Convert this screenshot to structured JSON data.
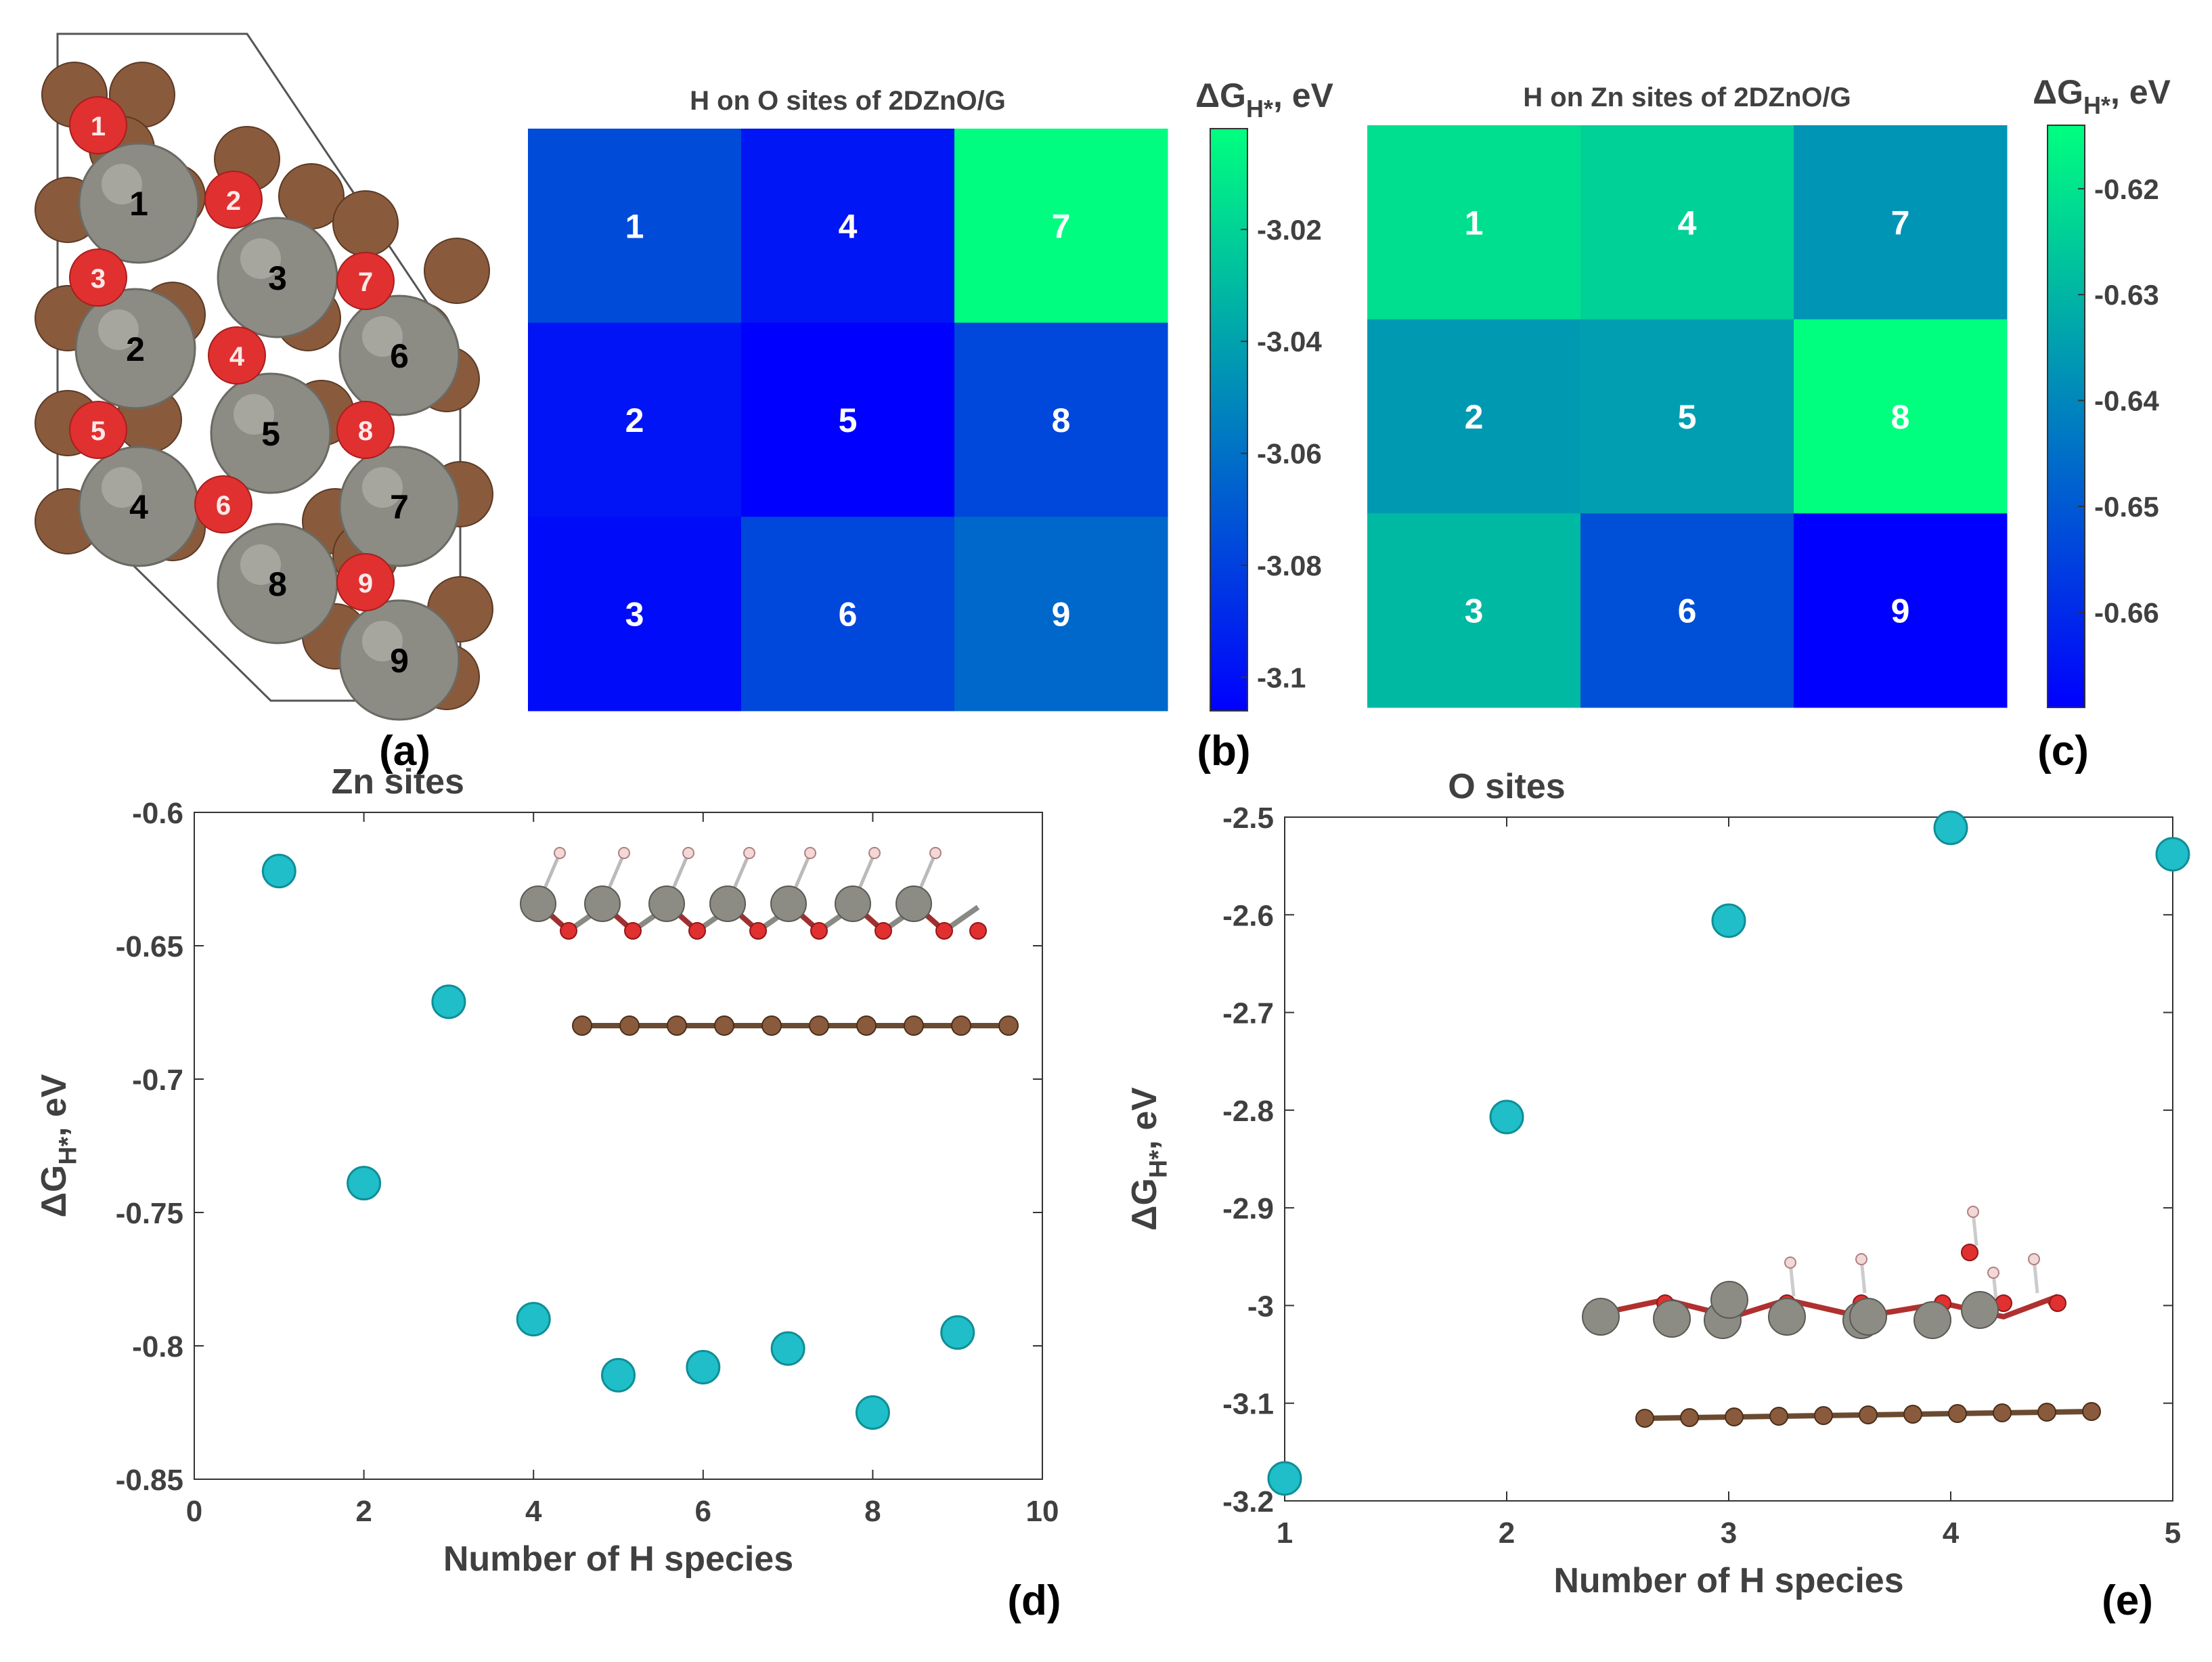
{
  "colors": {
    "marker": "#1fbec8",
    "marker_edge": "#0f8e96",
    "zn": "#8c8c84",
    "o": "#e03030",
    "c": "#8a5a3c",
    "h": "#f2d8d8",
    "cmap_low": "#0000ff",
    "cmap_high": "#00ff7f"
  },
  "panel_labels": {
    "a": "(a)",
    "b": "(b)",
    "c": "(c)",
    "d": "(d)",
    "e": "(e)"
  },
  "structure": {
    "zn_labels": [
      "1",
      "2",
      "3",
      "4",
      "5",
      "6",
      "7",
      "8",
      "9"
    ],
    "o_labels": [
      "1",
      "2",
      "3",
      "4",
      "5",
      "6",
      "7",
      "8",
      "9"
    ]
  },
  "chart_data": [
    {
      "type": "heatmap",
      "title": "H on O sites of 2DZnO/G",
      "colorbar_label": "ΔG",
      "colorbar_sub": "H*",
      "colorbar_suffix": ", eV",
      "colorbar_ticks": [
        "-3.02",
        "-3.04",
        "-3.06",
        "-3.08",
        "-3.1"
      ],
      "colorbar_tick_values": [
        -3.02,
        -3.04,
        -3.06,
        -3.08,
        -3.1
      ],
      "vmin": -3.106,
      "vmax": -3.002,
      "cell_labels": [
        [
          "1",
          "4",
          "7"
        ],
        [
          "2",
          "5",
          "8"
        ],
        [
          "3",
          "6",
          "9"
        ]
      ],
      "values": [
        [
          -3.075,
          -3.097,
          -3.003
        ],
        [
          -3.098,
          -3.106,
          -3.077
        ],
        [
          -3.101,
          -3.077,
          -3.064
        ]
      ]
    },
    {
      "type": "heatmap",
      "title": "H on Zn sites of 2DZnO/G",
      "colorbar_label": "ΔG",
      "colorbar_sub": "H*",
      "colorbar_suffix": ", eV",
      "colorbar_ticks": [
        "-0.62",
        "-0.63",
        "-0.64",
        "-0.65",
        "-0.66"
      ],
      "colorbar_tick_values": [
        -0.62,
        -0.63,
        -0.64,
        -0.65,
        -0.66
      ],
      "vmin": -0.669,
      "vmax": -0.614,
      "cell_labels": [
        [
          "1",
          "4",
          "7"
        ],
        [
          "2",
          "5",
          "8"
        ],
        [
          "3",
          "6",
          "9"
        ]
      ],
      "values": [
        [
          -0.621,
          -0.624,
          -0.637
        ],
        [
          -0.636,
          -0.635,
          -0.614
        ],
        [
          -0.629,
          -0.652,
          -0.669
        ]
      ]
    },
    {
      "type": "scatter",
      "title": "Zn sites",
      "xlabel": "Number of H species",
      "ylabel": "ΔG",
      "ylabel_sub": "H*",
      "ylabel_suffix": ", eV",
      "xlim": [
        0,
        10
      ],
      "ylim": [
        -0.85,
        -0.6
      ],
      "xticks": [
        "0",
        "2",
        "4",
        "6",
        "8",
        "10"
      ],
      "xtick_values": [
        0,
        2,
        4,
        6,
        8,
        10
      ],
      "yticks": [
        "-0.6",
        "-0.65",
        "-0.7",
        "-0.75",
        "-0.8",
        "-0.85"
      ],
      "ytick_values": [
        -0.6,
        -0.65,
        -0.7,
        -0.75,
        -0.8,
        -0.85
      ],
      "x": [
        1,
        2,
        3,
        4,
        5,
        6,
        7,
        8,
        9
      ],
      "y": [
        -0.622,
        -0.739,
        -0.671,
        -0.79,
        -0.811,
        -0.808,
        -0.801,
        -0.825,
        -0.795
      ]
    },
    {
      "type": "scatter",
      "title": "O sites",
      "xlabel": "Number of H species",
      "ylabel": "ΔG",
      "ylabel_sub": "H*",
      "ylabel_suffix": ", eV",
      "xlim": [
        1,
        5
      ],
      "ylim": [
        -3.2,
        -2.5
      ],
      "xticks": [
        "1",
        "2",
        "3",
        "4",
        "5"
      ],
      "xtick_values": [
        1,
        2,
        3,
        4,
        5
      ],
      "yticks": [
        "-2.5",
        "-2.6",
        "-2.7",
        "-2.8",
        "-2.9",
        "-3",
        "-3.1",
        "-3.2"
      ],
      "ytick_values": [
        -2.5,
        -2.6,
        -2.7,
        -2.8,
        -2.9,
        -3.0,
        -3.1,
        -3.2
      ],
      "x": [
        1,
        2,
        3,
        4,
        5
      ],
      "y": [
        -3.177,
        -2.807,
        -2.606,
        -2.511,
        -2.538
      ]
    }
  ]
}
